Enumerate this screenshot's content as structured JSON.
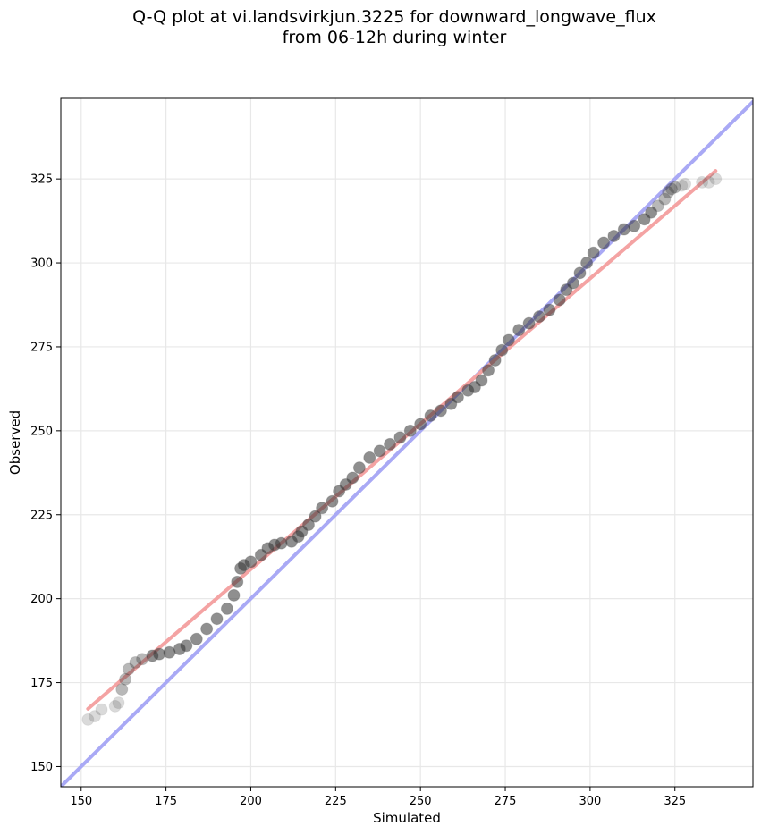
{
  "chart_data": {
    "type": "scatter",
    "title": "Q-Q plot at vi.landsvirkjun.3225 for downward_longwave_flux\nfrom 06-12h during winter",
    "title_lines": [
      "Q-Q plot at vi.landsvirkjun.3225 for downward_longwave_flux",
      "from 06-12h during winter"
    ],
    "xlabel": "Simulated",
    "ylabel": "Observed",
    "xlim": [
      144,
      348
    ],
    "ylim": [
      144,
      349
    ],
    "xticks": [
      150,
      175,
      200,
      225,
      250,
      275,
      300,
      325
    ],
    "yticks": [
      150,
      175,
      200,
      225,
      250,
      275,
      300,
      325
    ],
    "grid": true,
    "colors": {
      "points": "#333333",
      "identity_line": "#a9a9f5",
      "fit_line": "#f4a3a3",
      "grid": "#e8e8e8"
    },
    "reference_lines": [
      {
        "kind": "identity",
        "x": [
          144,
          348
        ],
        "y": [
          144,
          348
        ]
      },
      {
        "kind": "fit",
        "x": [
          152,
          337
        ],
        "y": [
          167.2,
          327.4
        ]
      }
    ],
    "quantiles": {
      "x": [
        152,
        154,
        156,
        160,
        161,
        162,
        163,
        164,
        166,
        168,
        171,
        173,
        176,
        179,
        181,
        184,
        187,
        190,
        193,
        195,
        196,
        197,
        198,
        200,
        203,
        205,
        207,
        209,
        212,
        214,
        215,
        217,
        219,
        221,
        224,
        226,
        228,
        230,
        232,
        235,
        238,
        241,
        244,
        247,
        250,
        253,
        256,
        259,
        261,
        264,
        266,
        268,
        270,
        272,
        274,
        276,
        279,
        282,
        285,
        288,
        291,
        293,
        295,
        297,
        299,
        301,
        304,
        307,
        310,
        313,
        316,
        318,
        320,
        322,
        323,
        324,
        325,
        327,
        328,
        333,
        335,
        337
      ],
      "y": [
        164,
        165,
        167,
        168,
        169,
        173,
        176,
        179,
        181,
        182,
        183,
        183.5,
        184,
        185,
        186,
        188,
        191,
        194,
        197,
        201,
        205,
        209,
        210,
        211,
        213,
        215,
        216,
        216.5,
        217,
        218.5,
        220,
        222,
        224.5,
        227,
        229,
        232,
        234,
        236,
        239,
        242,
        244,
        246,
        248,
        250,
        252,
        254.5,
        256,
        258,
        260,
        262,
        263,
        265,
        268,
        271,
        274,
        277,
        280,
        282,
        284,
        286,
        289,
        292,
        294,
        297,
        300,
        303,
        306,
        308,
        310,
        311,
        313,
        315,
        317,
        319,
        321,
        322,
        322.5,
        323,
        323.5,
        324,
        324,
        325
      ]
    }
  }
}
